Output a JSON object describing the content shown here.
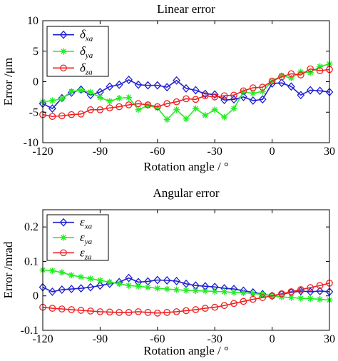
{
  "chart_data": [
    {
      "type": "line",
      "title": "Linear error",
      "xlabel": "Rotation angle / °",
      "ylabel": "Error /μm",
      "xlim": [
        -120,
        30
      ],
      "ylim": [
        -10,
        10
      ],
      "xticks": [
        -120,
        -90,
        -60,
        -30,
        0,
        30
      ],
      "yticks": [
        -10,
        -5,
        0,
        5,
        10
      ],
      "xtick_labels": [
        "-120",
        "-90",
        "-60",
        "-30",
        "0",
        "30"
      ],
      "ytick_labels": [
        "-10",
        "-5",
        "0",
        "5",
        "10"
      ],
      "legend_position": "top-left",
      "x": [
        -120,
        -115,
        -110,
        -105,
        -100,
        -95,
        -90,
        -85,
        -80,
        -75,
        -70,
        -65,
        -60,
        -55,
        -50,
        -45,
        -40,
        -35,
        -30,
        -25,
        -20,
        -15,
        -10,
        -5,
        0,
        5,
        10,
        15,
        20,
        25,
        30
      ],
      "series": [
        {
          "name": "δxa",
          "base": "δ",
          "sub": "xa",
          "color": "#1f1fd1",
          "marker": "diamond",
          "values": [
            -3.6,
            -4.4,
            -2.7,
            -1.8,
            -1.3,
            -2.2,
            -1.7,
            -0.8,
            -0.5,
            0.3,
            -0.5,
            -0.6,
            -0.6,
            -0.9,
            0.2,
            -1.1,
            -1.4,
            -2.0,
            -2.1,
            -3.0,
            -2.9,
            -2.5,
            -3.1,
            -2.9,
            -0.3,
            -0.2,
            -0.8,
            -2.2,
            -1.4,
            -1.5,
            -1.7
          ]
        },
        {
          "name": "δya",
          "base": "δ",
          "sub": "ya",
          "color": "#22ee22",
          "marker": "star",
          "values": [
            -3.3,
            -3.1,
            -2.8,
            -1.6,
            -1.4,
            -1.7,
            -2.6,
            -3.2,
            -2.7,
            -2.6,
            -4.6,
            -3.9,
            -4.3,
            -6.2,
            -4.6,
            -6.1,
            -4.4,
            -5.5,
            -4.6,
            -5.8,
            -4.4,
            -1.7,
            -1.9,
            -1.6,
            0.1,
            1.0,
            0.6,
            1.6,
            1.5,
            2.5,
            2.9
          ]
        },
        {
          "name": "δza",
          "base": "δ",
          "sub": "za",
          "color": "#ee2222",
          "marker": "circle",
          "values": [
            -5.4,
            -5.7,
            -5.6,
            -5.4,
            -5.3,
            -4.6,
            -4.6,
            -4.3,
            -4.1,
            -3.8,
            -3.6,
            -3.8,
            -4.1,
            -3.6,
            -3.3,
            -2.8,
            -2.9,
            -2.3,
            -2.5,
            -2.3,
            -2.2,
            -1.5,
            -1.0,
            -0.9,
            0.1,
            0.8,
            1.3,
            1.1,
            2.1,
            1.8,
            2.0
          ]
        }
      ]
    },
    {
      "type": "line",
      "title": "Angular error",
      "xlabel": "Rotation angle / °",
      "ylabel": "Error /mrad",
      "xlim": [
        -120,
        30
      ],
      "ylim": [
        -0.1,
        0.25
      ],
      "xticks": [
        -120,
        -90,
        -60,
        -30,
        0,
        30
      ],
      "yticks": [
        -0.1,
        0,
        0.1,
        0.2
      ],
      "xtick_labels": [
        "-120",
        "-90",
        "-60",
        "-30",
        "0",
        "30"
      ],
      "ytick_labels": [
        "-0.1",
        "0",
        "0.1",
        "0.2"
      ],
      "legend_position": "top-left",
      "x": [
        -120,
        -115,
        -110,
        -105,
        -100,
        -95,
        -90,
        -85,
        -80,
        -75,
        -70,
        -65,
        -60,
        -55,
        -50,
        -45,
        -40,
        -35,
        -30,
        -25,
        -20,
        -15,
        -10,
        -5,
        0,
        5,
        10,
        15,
        20,
        25,
        30
      ],
      "series": [
        {
          "name": "εxa",
          "base": "ε",
          "sub": "xa",
          "color": "#1f1fd1",
          "marker": "diamond",
          "values": [
            0.025,
            0.012,
            0.018,
            0.02,
            0.022,
            0.025,
            0.03,
            0.035,
            0.04,
            0.052,
            0.04,
            0.042,
            0.046,
            0.045,
            0.043,
            0.035,
            0.03,
            0.028,
            0.026,
            0.022,
            0.02,
            0.015,
            0.01,
            0.005,
            0.0,
            0.005,
            0.01,
            0.014,
            0.012,
            0.014,
            0.012
          ]
        },
        {
          "name": "εya",
          "base": "ε",
          "sub": "ya",
          "color": "#22ee22",
          "marker": "star",
          "values": [
            0.075,
            0.073,
            0.068,
            0.06,
            0.055,
            0.05,
            0.045,
            0.04,
            0.035,
            0.03,
            0.028,
            0.025,
            0.022,
            0.02,
            0.018,
            0.016,
            0.015,
            0.014,
            0.013,
            0.012,
            0.01,
            0.009,
            0.007,
            0.004,
            0.0,
            -0.003,
            -0.005,
            -0.007,
            -0.008,
            -0.01,
            -0.012
          ]
        },
        {
          "name": "εza",
          "base": "ε",
          "sub": "za",
          "color": "#ee2222",
          "marker": "circle",
          "values": [
            -0.033,
            -0.036,
            -0.038,
            -0.04,
            -0.042,
            -0.044,
            -0.046,
            -0.047,
            -0.048,
            -0.048,
            -0.046,
            -0.048,
            -0.05,
            -0.048,
            -0.046,
            -0.043,
            -0.04,
            -0.036,
            -0.033,
            -0.028,
            -0.022,
            -0.016,
            -0.01,
            -0.005,
            0.0,
            0.006,
            0.012,
            0.018,
            0.024,
            0.03,
            0.037
          ]
        }
      ]
    }
  ]
}
